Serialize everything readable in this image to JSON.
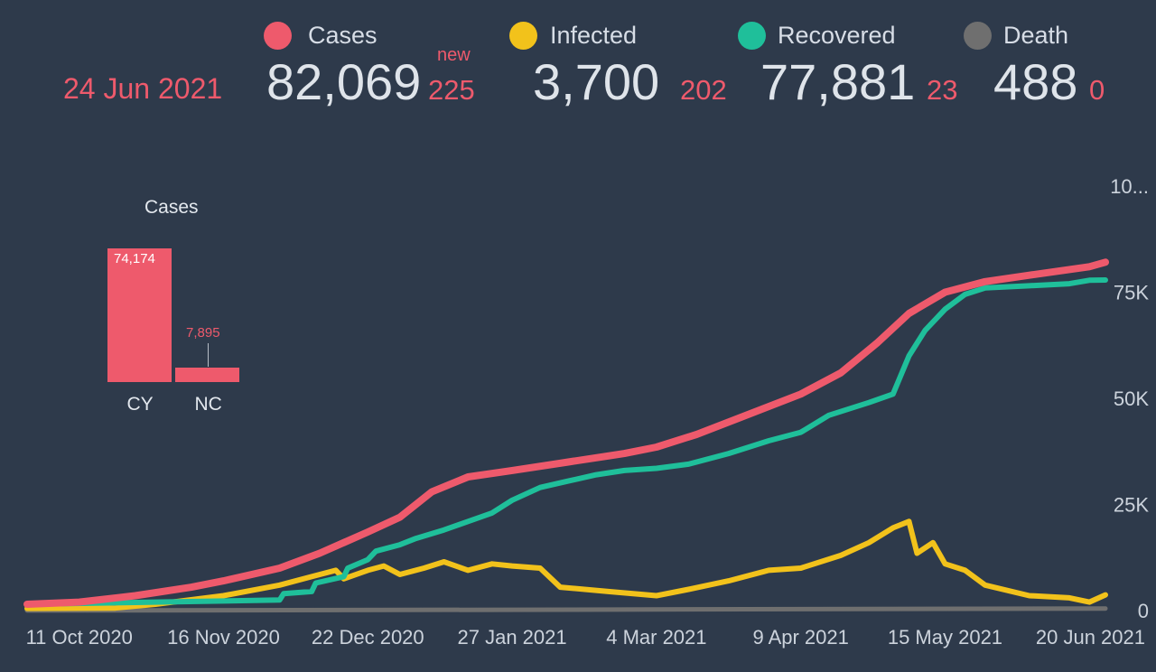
{
  "header": {
    "date": "24 Jun 2021",
    "new_label": "new",
    "stats": [
      {
        "label": "Cases",
        "value": "82,069",
        "delta": "225",
        "color": "#ee5a6c"
      },
      {
        "label": "Infected",
        "value": "3,700",
        "delta": "202",
        "color": "#f2c21b"
      },
      {
        "label": "Recovered",
        "value": "77,881",
        "delta": "23",
        "color": "#1fbf9a"
      },
      {
        "label": "Death",
        "value": "488",
        "delta": "0",
        "color": "#6f6f6f"
      }
    ]
  },
  "inset": {
    "title": "Cases",
    "bars": [
      {
        "category": "CY",
        "value": 74174,
        "label": "74,174"
      },
      {
        "category": "NC",
        "value": 7895,
        "label": "7,895"
      }
    ]
  },
  "chart_data": {
    "type": "line",
    "x_ticks": [
      "11 Oct 2020",
      "16 Nov 2020",
      "22 Dec 2020",
      "27 Jan 2021",
      "4 Mar 2021",
      "9 Apr 2021",
      "15 May 2021",
      "20 Jun 2021"
    ],
    "y_ticks": [
      "0",
      "25K",
      "50K",
      "75K",
      "10..."
    ],
    "ylim": [
      0,
      100000
    ],
    "x_range": [
      "2020-09-28",
      "2021-06-24"
    ],
    "series": [
      {
        "name": "Cases",
        "color": "#ee5a6c",
        "points": [
          [
            "2020-09-28",
            1500
          ],
          [
            "2020-10-11",
            2000
          ],
          [
            "2020-10-25",
            3500
          ],
          [
            "2020-11-08",
            5500
          ],
          [
            "2020-11-16",
            7000
          ],
          [
            "2020-11-30",
            10000
          ],
          [
            "2020-12-10",
            13500
          ],
          [
            "2020-12-22",
            18500
          ],
          [
            "2020-12-30",
            22000
          ],
          [
            "2021-01-07",
            28000
          ],
          [
            "2021-01-16",
            31500
          ],
          [
            "2021-01-27",
            33000
          ],
          [
            "2021-02-10",
            35000
          ],
          [
            "2021-02-24",
            37000
          ],
          [
            "2021-03-04",
            38500
          ],
          [
            "2021-03-14",
            41500
          ],
          [
            "2021-03-25",
            45500
          ],
          [
            "2021-04-09",
            51000
          ],
          [
            "2021-04-19",
            56000
          ],
          [
            "2021-04-28",
            63000
          ],
          [
            "2021-05-06",
            70000
          ],
          [
            "2021-05-15",
            75000
          ],
          [
            "2021-05-25",
            77500
          ],
          [
            "2021-06-05",
            79000
          ],
          [
            "2021-06-20",
            81000
          ],
          [
            "2021-06-24",
            82069
          ]
        ]
      },
      {
        "name": "Infected",
        "color": "#f2c21b",
        "points": [
          [
            "2020-09-28",
            500
          ],
          [
            "2020-10-20",
            600
          ],
          [
            "2020-10-30",
            1500
          ],
          [
            "2020-11-16",
            3500
          ],
          [
            "2020-11-30",
            6000
          ],
          [
            "2020-12-08",
            8000
          ],
          [
            "2020-12-14",
            9500
          ],
          [
            "2020-12-16",
            7500
          ],
          [
            "2020-12-22",
            9500
          ],
          [
            "2020-12-26",
            10500
          ],
          [
            "2020-12-30",
            8500
          ],
          [
            "2021-01-05",
            10000
          ],
          [
            "2021-01-10",
            11500
          ],
          [
            "2021-01-16",
            9500
          ],
          [
            "2021-01-22",
            11000
          ],
          [
            "2021-01-27",
            10500
          ],
          [
            "2021-02-03",
            10000
          ],
          [
            "2021-02-08",
            5500
          ],
          [
            "2021-02-20",
            4500
          ],
          [
            "2021-03-04",
            3500
          ],
          [
            "2021-03-12",
            5000
          ],
          [
            "2021-03-22",
            7000
          ],
          [
            "2021-04-01",
            9500
          ],
          [
            "2021-04-09",
            10000
          ],
          [
            "2021-04-19",
            13000
          ],
          [
            "2021-04-26",
            16000
          ],
          [
            "2021-05-02",
            19500
          ],
          [
            "2021-05-06",
            21000
          ],
          [
            "2021-05-08",
            13500
          ],
          [
            "2021-05-12",
            16000
          ],
          [
            "2021-05-15",
            11000
          ],
          [
            "2021-05-20",
            9500
          ],
          [
            "2021-05-25",
            6000
          ],
          [
            "2021-06-05",
            3500
          ],
          [
            "2021-06-15",
            3000
          ],
          [
            "2021-06-20",
            2000
          ],
          [
            "2021-06-24",
            3700
          ]
        ]
      },
      {
        "name": "Recovered",
        "color": "#1fbf9a",
        "points": [
          [
            "2020-09-28",
            1500
          ],
          [
            "2020-11-30",
            2500
          ],
          [
            "2020-12-01",
            4000
          ],
          [
            "2020-12-08",
            4500
          ],
          [
            "2020-12-09",
            6500
          ],
          [
            "2020-12-16",
            8000
          ],
          [
            "2020-12-17",
            10000
          ],
          [
            "2020-12-22",
            12000
          ],
          [
            "2020-12-24",
            14000
          ],
          [
            "2020-12-30",
            15500
          ],
          [
            "2021-01-03",
            17000
          ],
          [
            "2021-01-10",
            19000
          ],
          [
            "2021-01-16",
            21000
          ],
          [
            "2021-01-22",
            23000
          ],
          [
            "2021-01-27",
            26000
          ],
          [
            "2021-02-03",
            29000
          ],
          [
            "2021-02-10",
            30500
          ],
          [
            "2021-02-17",
            32000
          ],
          [
            "2021-02-24",
            33000
          ],
          [
            "2021-03-04",
            33500
          ],
          [
            "2021-03-12",
            34500
          ],
          [
            "2021-03-22",
            37000
          ],
          [
            "2021-04-01",
            40000
          ],
          [
            "2021-04-09",
            42000
          ],
          [
            "2021-04-16",
            46000
          ],
          [
            "2021-04-26",
            49000
          ],
          [
            "2021-05-02",
            51000
          ],
          [
            "2021-05-06",
            60000
          ],
          [
            "2021-05-10",
            66000
          ],
          [
            "2021-05-15",
            71000
          ],
          [
            "2021-05-20",
            74500
          ],
          [
            "2021-05-25",
            76000
          ],
          [
            "2021-06-05",
            76500
          ],
          [
            "2021-06-15",
            77000
          ],
          [
            "2021-06-20",
            77800
          ],
          [
            "2021-06-24",
            77881
          ]
        ]
      },
      {
        "name": "Death",
        "color": "#6f6f6f",
        "points": [
          [
            "2020-09-28",
            20
          ],
          [
            "2021-01-27",
            200
          ],
          [
            "2021-06-24",
            488
          ]
        ]
      }
    ]
  }
}
